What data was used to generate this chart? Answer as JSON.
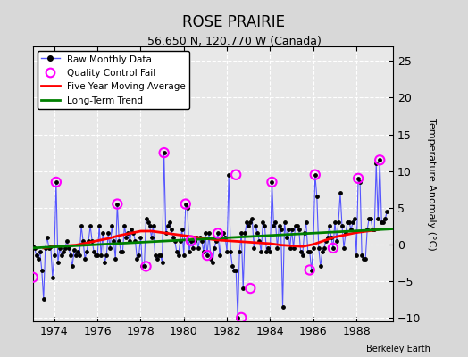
{
  "title": "ROSE PRAIRIE",
  "subtitle": "56.650 N, 120.770 W (Canada)",
  "attribution": "Berkeley Earth",
  "ylabel": "Temperature Anomaly (°C)",
  "xlim": [
    1973.0,
    1989.7
  ],
  "ylim": [
    -10.5,
    27
  ],
  "yticks": [
    -10,
    -5,
    0,
    5,
    10,
    15,
    20,
    25
  ],
  "xticks": [
    1974,
    1976,
    1978,
    1980,
    1982,
    1984,
    1986,
    1988
  ],
  "bg_color": "#d8d8d8",
  "plot_bg_color": "#e8e8e8",
  "grid_color": "white",
  "raw_line_color": "#5555ff",
  "raw_marker_color": "black",
  "ma_color": "red",
  "trend_color": "green",
  "qc_fail_color": "magenta",
  "raw_data_x": [
    1973.0,
    1973.083,
    1973.167,
    1973.25,
    1973.333,
    1973.417,
    1973.5,
    1973.583,
    1973.667,
    1973.75,
    1973.833,
    1973.917,
    1974.0,
    1974.083,
    1974.167,
    1974.25,
    1974.333,
    1974.417,
    1974.5,
    1974.583,
    1974.667,
    1974.75,
    1974.833,
    1974.917,
    1975.0,
    1975.083,
    1975.167,
    1975.25,
    1975.333,
    1975.417,
    1975.5,
    1975.583,
    1975.667,
    1975.75,
    1975.833,
    1975.917,
    1976.0,
    1976.083,
    1976.167,
    1976.25,
    1976.333,
    1976.417,
    1976.5,
    1976.583,
    1976.667,
    1976.75,
    1976.833,
    1976.917,
    1977.0,
    1977.083,
    1977.167,
    1977.25,
    1977.333,
    1977.417,
    1977.5,
    1977.583,
    1977.667,
    1977.75,
    1977.833,
    1977.917,
    1978.0,
    1978.083,
    1978.167,
    1978.25,
    1978.333,
    1978.417,
    1978.5,
    1978.583,
    1978.667,
    1978.75,
    1978.833,
    1978.917,
    1979.0,
    1979.083,
    1979.167,
    1979.25,
    1979.333,
    1979.417,
    1979.5,
    1979.583,
    1979.667,
    1979.75,
    1979.833,
    1979.917,
    1980.0,
    1980.083,
    1980.167,
    1980.25,
    1980.333,
    1980.417,
    1980.5,
    1980.583,
    1980.667,
    1980.75,
    1980.833,
    1980.917,
    1981.0,
    1981.083,
    1981.167,
    1981.25,
    1981.333,
    1981.417,
    1981.5,
    1981.583,
    1981.667,
    1981.75,
    1981.833,
    1981.917,
    1982.0,
    1982.083,
    1982.167,
    1982.25,
    1982.333,
    1982.417,
    1982.5,
    1982.583,
    1982.667,
    1982.75,
    1982.833,
    1982.917,
    1983.0,
    1983.083,
    1983.167,
    1983.25,
    1983.333,
    1983.417,
    1983.5,
    1983.583,
    1983.667,
    1983.75,
    1983.833,
    1983.917,
    1984.0,
    1984.083,
    1984.167,
    1984.25,
    1984.333,
    1984.417,
    1984.5,
    1984.583,
    1984.667,
    1984.75,
    1984.833,
    1984.917,
    1985.0,
    1985.083,
    1985.167,
    1985.25,
    1985.333,
    1985.417,
    1985.5,
    1985.583,
    1985.667,
    1985.75,
    1985.833,
    1985.917,
    1986.0,
    1986.083,
    1986.167,
    1986.25,
    1986.333,
    1986.417,
    1986.5,
    1986.583,
    1986.667,
    1986.75,
    1986.833,
    1986.917,
    1987.0,
    1987.083,
    1987.167,
    1987.25,
    1987.333,
    1987.417,
    1987.5,
    1987.583,
    1987.667,
    1987.75,
    1987.833,
    1987.917,
    1988.0,
    1988.083,
    1988.167,
    1988.25,
    1988.333,
    1988.417,
    1988.5,
    1988.583,
    1988.667,
    1988.75,
    1988.833,
    1988.917,
    1989.0,
    1989.083,
    1989.167,
    1989.25,
    1989.333,
    1989.417
  ],
  "raw_data_y": [
    -0.3,
    -0.5,
    -1.5,
    -2.0,
    -1.0,
    -3.5,
    -7.5,
    -0.5,
    1.0,
    -0.5,
    -0.3,
    -4.5,
    -1.5,
    8.5,
    -2.5,
    -0.5,
    -1.5,
    -1.0,
    -0.5,
    0.5,
    -0.5,
    -1.5,
    -3.0,
    -0.8,
    -1.5,
    -1.0,
    -1.5,
    2.5,
    0.5,
    -2.0,
    -1.0,
    0.5,
    2.5,
    0.5,
    -1.0,
    -1.5,
    -1.5,
    2.5,
    -1.5,
    1.5,
    -2.5,
    -1.5,
    1.5,
    -0.5,
    2.5,
    0.5,
    -2.0,
    5.5,
    0.5,
    -1.0,
    -1.0,
    2.5,
    1.0,
    1.5,
    0.5,
    2.0,
    1.5,
    0.5,
    -2.0,
    -1.5,
    1.0,
    -3.0,
    -3.0,
    3.5,
    3.0,
    2.5,
    1.0,
    2.5,
    -1.5,
    -2.0,
    -1.5,
    -1.5,
    -2.5,
    12.5,
    1.5,
    2.5,
    3.0,
    2.0,
    1.0,
    0.5,
    -1.0,
    -1.5,
    0.5,
    2.0,
    -1.5,
    5.5,
    5.0,
    -1.0,
    0.5,
    -0.5,
    0.5,
    1.0,
    -0.5,
    1.0,
    0.5,
    -1.0,
    1.5,
    -1.5,
    1.5,
    -2.0,
    -2.5,
    -0.5,
    0.5,
    1.5,
    -1.5,
    1.0,
    1.5,
    1.0,
    -1.0,
    9.5,
    -1.0,
    -3.0,
    -3.5,
    -3.5,
    -10.0,
    -1.0,
    1.5,
    -6.0,
    1.5,
    3.0,
    2.5,
    3.0,
    3.5,
    -0.5,
    2.5,
    1.5,
    0.5,
    -1.0,
    3.0,
    2.5,
    -1.0,
    -0.5,
    -1.0,
    8.5,
    2.5,
    3.0,
    -0.5,
    2.5,
    2.0,
    -8.5,
    3.0,
    1.0,
    2.0,
    -0.5,
    2.0,
    -0.5,
    2.5,
    2.5,
    2.0,
    -1.0,
    -1.5,
    1.5,
    3.0,
    -1.0,
    -1.0,
    -3.5,
    -0.5,
    9.5,
    6.5,
    -0.5,
    -3.0,
    -1.0,
    -0.5,
    0.5,
    1.0,
    2.5,
    1.0,
    -0.5,
    3.0,
    0.5,
    3.0,
    7.0,
    2.5,
    -0.5,
    1.5,
    3.0,
    3.0,
    2.0,
    3.0,
    3.5,
    -1.5,
    9.0,
    8.5,
    -1.5,
    -2.0,
    -2.0,
    2.0,
    3.5,
    3.5,
    2.0,
    2.0,
    11.0,
    3.5,
    11.5,
    3.0,
    3.0,
    3.5,
    4.5
  ],
  "qc_fail_x": [
    1973.0,
    1974.083,
    1976.917,
    1978.25,
    1979.083,
    1980.083,
    1980.333,
    1981.083,
    1981.583,
    1982.417,
    1982.667,
    1983.083,
    1984.083,
    1985.833,
    1986.083,
    1986.917,
    1988.083,
    1989.083
  ],
  "qc_fail_y": [
    -4.5,
    8.5,
    5.5,
    -3.0,
    12.5,
    5.5,
    0.5,
    -1.5,
    1.5,
    9.5,
    -10.0,
    -6.0,
    8.5,
    -3.5,
    9.5,
    -0.5,
    9.0,
    11.5
  ],
  "ma_x": [
    1973.5,
    1974.0,
    1974.5,
    1975.0,
    1975.5,
    1976.0,
    1976.5,
    1977.0,
    1977.5,
    1978.0,
    1978.5,
    1979.0,
    1979.5,
    1980.0,
    1980.5,
    1981.0,
    1981.5,
    1982.0,
    1982.5,
    1983.0,
    1983.5,
    1984.0,
    1984.5,
    1985.0,
    1985.5,
    1986.0,
    1986.5,
    1987.0,
    1987.5,
    1988.0,
    1988.5,
    1989.0
  ],
  "ma_y": [
    -0.5,
    -0.3,
    -0.2,
    -0.1,
    0.2,
    0.5,
    0.8,
    1.2,
    1.5,
    1.8,
    1.8,
    1.6,
    1.4,
    1.2,
    1.0,
    0.8,
    0.6,
    0.5,
    0.4,
    0.3,
    0.2,
    0.1,
    -0.1,
    -0.2,
    -0.3,
    0.0,
    0.5,
    1.0,
    1.3,
    1.6,
    1.8,
    2.0
  ],
  "trend_x": [
    1973.0,
    1989.7
  ],
  "trend_y": [
    -0.5,
    2.1
  ]
}
